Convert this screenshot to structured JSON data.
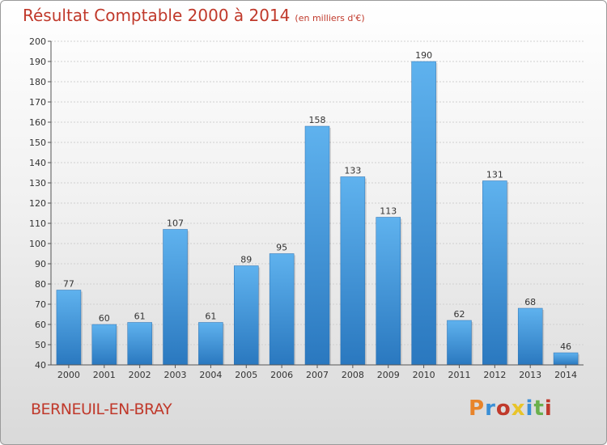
{
  "header": {
    "title": "Résultat Comptable 2000 à 2014",
    "subtitle": "(en milliers d'€)"
  },
  "footer": {
    "commune": "BERNEUIL-EN-BRAY",
    "logo_text": "Proxiti",
    "logo_colors": [
      "#e8842a",
      "#3a8fd6",
      "#c0392b",
      "#e8c42a",
      "#3a8fd6",
      "#6ab04c",
      "#c0392b"
    ]
  },
  "chart_data": {
    "type": "bar",
    "title": "Résultat Comptable 2000 à 2014",
    "categories": [
      "2000",
      "2001",
      "2002",
      "2003",
      "2004",
      "2005",
      "2006",
      "2007",
      "2008",
      "2009",
      "2010",
      "2011",
      "2012",
      "2013",
      "2014"
    ],
    "values": [
      77,
      60,
      61,
      107,
      61,
      89,
      95,
      158,
      133,
      113,
      190,
      62,
      131,
      68,
      46
    ],
    "ylim": [
      40,
      200
    ],
    "yticks": [
      40,
      50,
      60,
      70,
      80,
      90,
      100,
      110,
      120,
      130,
      140,
      150,
      160,
      170,
      180,
      190,
      200
    ],
    "grid": true,
    "bar_color": "#4aa3e6",
    "text_color": "#c0392b"
  }
}
